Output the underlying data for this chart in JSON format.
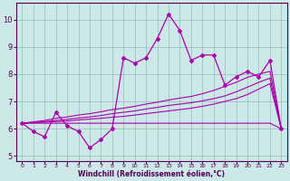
{
  "xlabel": "Windchill (Refroidissement éolien,°C)",
  "background_color": "#cce8e8",
  "line_color": "#aa00aa",
  "grid_color": "#99bbbb",
  "x_values": [
    0,
    1,
    2,
    3,
    4,
    5,
    6,
    7,
    8,
    9,
    10,
    11,
    12,
    13,
    14,
    15,
    16,
    17,
    18,
    19,
    20,
    21,
    22,
    23
  ],
  "y_main": [
    6.2,
    5.9,
    5.7,
    6.6,
    6.1,
    5.9,
    5.3,
    5.6,
    6.0,
    8.6,
    8.4,
    8.6,
    9.3,
    10.2,
    9.6,
    8.5,
    8.7,
    8.7,
    7.6,
    7.9,
    8.1,
    7.9,
    8.5,
    6.0
  ],
  "y_line_flat": [
    6.2,
    6.2,
    6.2,
    6.2,
    6.2,
    6.2,
    6.2,
    6.2,
    6.2,
    6.2,
    6.2,
    6.2,
    6.2,
    6.2,
    6.2,
    6.2,
    6.2,
    6.2,
    6.2,
    6.2,
    6.2,
    6.2,
    6.2,
    6.0
  ],
  "y_line_slope1": [
    6.2,
    6.22,
    6.24,
    6.26,
    6.28,
    6.32,
    6.35,
    6.38,
    6.42,
    6.45,
    6.5,
    6.55,
    6.6,
    6.65,
    6.7,
    6.75,
    6.82,
    6.9,
    7.0,
    7.1,
    7.25,
    7.45,
    7.65,
    6.0
  ],
  "y_line_slope2": [
    6.2,
    6.23,
    6.26,
    6.3,
    6.34,
    6.39,
    6.43,
    6.48,
    6.55,
    6.6,
    6.65,
    6.72,
    6.78,
    6.85,
    6.9,
    6.95,
    7.02,
    7.1,
    7.2,
    7.35,
    7.52,
    7.7,
    7.85,
    6.0
  ],
  "y_line_slope3": [
    6.2,
    6.25,
    6.3,
    6.38,
    6.43,
    6.5,
    6.55,
    6.62,
    6.7,
    6.75,
    6.82,
    6.9,
    6.97,
    7.05,
    7.12,
    7.18,
    7.28,
    7.4,
    7.55,
    7.7,
    7.88,
    8.0,
    8.1,
    6.0
  ],
  "ylim": [
    4.8,
    10.6
  ],
  "xlim": [
    -0.5,
    23.5
  ],
  "yticks": [
    5,
    6,
    7,
    8,
    9,
    10
  ]
}
